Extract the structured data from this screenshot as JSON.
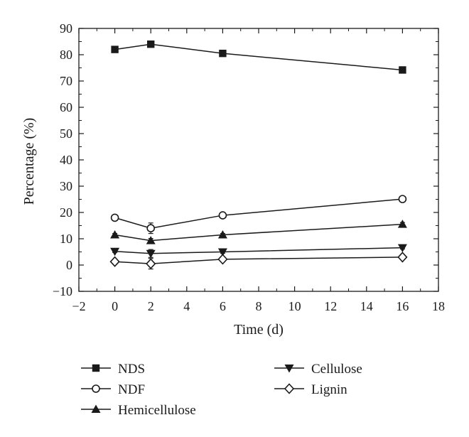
{
  "chart_data": {
    "type": "line",
    "title": "",
    "xlabel": "Time (d)",
    "ylabel": "Percentage (%)",
    "xlim": [
      -2,
      18
    ],
    "ylim": [
      -10,
      90
    ],
    "xticks": [
      -2,
      0,
      2,
      4,
      6,
      8,
      10,
      12,
      14,
      16,
      18
    ],
    "yticks": [
      -10,
      0,
      10,
      20,
      30,
      40,
      50,
      60,
      70,
      80,
      90
    ],
    "xtick_labels": [
      "−2",
      "0",
      "2",
      "4",
      "6",
      "8",
      "10",
      "12",
      "14",
      "16",
      "18"
    ],
    "ytick_labels": [
      "−10",
      "0",
      "10",
      "20",
      "30",
      "40",
      "50",
      "60",
      "70",
      "80",
      "90"
    ],
    "x": [
      0,
      2,
      6,
      16
    ],
    "grid": false,
    "legend_position": "below",
    "series": [
      {
        "name": "NDS",
        "marker": "square-filled",
        "values": [
          82.0,
          84.0,
          80.5,
          74.2
        ],
        "errors": [
          0.4,
          0.4,
          0.4,
          1.0
        ]
      },
      {
        "name": "NDF",
        "marker": "circle-open",
        "values": [
          18.0,
          14.0,
          18.9,
          25.1
        ],
        "errors": [
          0.5,
          2.0,
          0.8,
          1.0
        ]
      },
      {
        "name": "Hemicellulose",
        "marker": "triangle-up-filled",
        "values": [
          11.5,
          9.3,
          11.5,
          15.5
        ],
        "errors": [
          0.5,
          0.8,
          0.5,
          0.7
        ]
      },
      {
        "name": "Cellulose",
        "marker": "triangle-down-filled",
        "values": [
          5.2,
          4.4,
          5.0,
          6.6
        ],
        "errors": [
          0.4,
          1.5,
          0.5,
          0.5
        ]
      },
      {
        "name": "Lignin",
        "marker": "diamond-open",
        "values": [
          1.3,
          0.5,
          2.2,
          3.0
        ],
        "errors": [
          0.3,
          2.0,
          0.5,
          0.4
        ]
      }
    ]
  }
}
